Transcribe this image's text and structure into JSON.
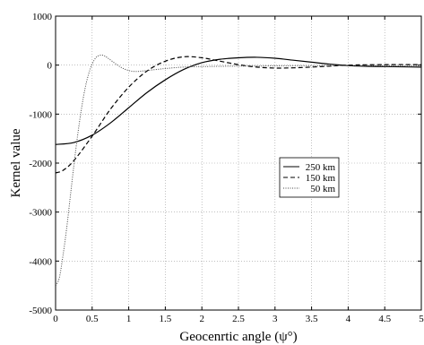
{
  "chart_data": {
    "type": "line",
    "xlabel": "Geocenrtic angle (ψ°)",
    "ylabel": "Kernel value",
    "xlim": [
      0,
      5
    ],
    "ylim": [
      -5000,
      1000
    ],
    "x_ticks": [
      "0",
      "0.5",
      "1",
      "1.5",
      "2",
      "2.5",
      "3",
      "3.5",
      "4",
      "4.5",
      "5"
    ],
    "y_ticks": [
      "-5000",
      "-4000",
      "-3000",
      "-2000",
      "-1000",
      "0",
      "1000"
    ],
    "grid": true,
    "legend_position": "center-right",
    "series": [
      {
        "name": "250 km",
        "style": "solid",
        "points": [
          [
            0,
            -1620
          ],
          [
            0.25,
            -1580
          ],
          [
            0.5,
            -1430
          ],
          [
            0.75,
            -1180
          ],
          [
            1.0,
            -870
          ],
          [
            1.25,
            -560
          ],
          [
            1.5,
            -300
          ],
          [
            1.75,
            -90
          ],
          [
            2.0,
            50
          ],
          [
            2.25,
            120
          ],
          [
            2.5,
            150
          ],
          [
            2.75,
            160
          ],
          [
            3.0,
            140
          ],
          [
            3.25,
            100
          ],
          [
            3.5,
            60
          ],
          [
            3.75,
            20
          ],
          [
            4.0,
            -10
          ],
          [
            4.25,
            -25
          ],
          [
            4.5,
            -30
          ],
          [
            4.75,
            -35
          ],
          [
            5.0,
            -40
          ]
        ]
      },
      {
        "name": "150 km",
        "style": "dashed",
        "points": [
          [
            0,
            -2200
          ],
          [
            0.1,
            -2150
          ],
          [
            0.25,
            -1950
          ],
          [
            0.5,
            -1450
          ],
          [
            0.75,
            -900
          ],
          [
            1.0,
            -450
          ],
          [
            1.25,
            -120
          ],
          [
            1.5,
            80
          ],
          [
            1.75,
            170
          ],
          [
            2.0,
            150
          ],
          [
            2.25,
            80
          ],
          [
            2.5,
            10
          ],
          [
            2.75,
            -40
          ],
          [
            3.0,
            -60
          ],
          [
            3.25,
            -55
          ],
          [
            3.5,
            -40
          ],
          [
            3.75,
            -20
          ],
          [
            4.0,
            0
          ],
          [
            4.5,
            10
          ],
          [
            5.0,
            10
          ]
        ]
      },
      {
        "name": "50 km",
        "style": "dotted",
        "points": [
          [
            0,
            -4500
          ],
          [
            0.05,
            -4350
          ],
          [
            0.1,
            -3900
          ],
          [
            0.15,
            -3350
          ],
          [
            0.2,
            -2700
          ],
          [
            0.25,
            -2050
          ],
          [
            0.3,
            -1450
          ],
          [
            0.35,
            -930
          ],
          [
            0.4,
            -500
          ],
          [
            0.45,
            -190
          ],
          [
            0.5,
            20
          ],
          [
            0.55,
            150
          ],
          [
            0.6,
            200
          ],
          [
            0.65,
            200
          ],
          [
            0.7,
            160
          ],
          [
            0.8,
            50
          ],
          [
            0.9,
            -50
          ],
          [
            1.0,
            -110
          ],
          [
            1.1,
            -130
          ],
          [
            1.25,
            -110
          ],
          [
            1.5,
            -70
          ],
          [
            1.75,
            -40
          ],
          [
            2.0,
            -30
          ],
          [
            2.5,
            -20
          ],
          [
            3.0,
            -15
          ],
          [
            3.5,
            -10
          ],
          [
            4.0,
            -10
          ],
          [
            5.0,
            -10
          ]
        ]
      }
    ]
  }
}
